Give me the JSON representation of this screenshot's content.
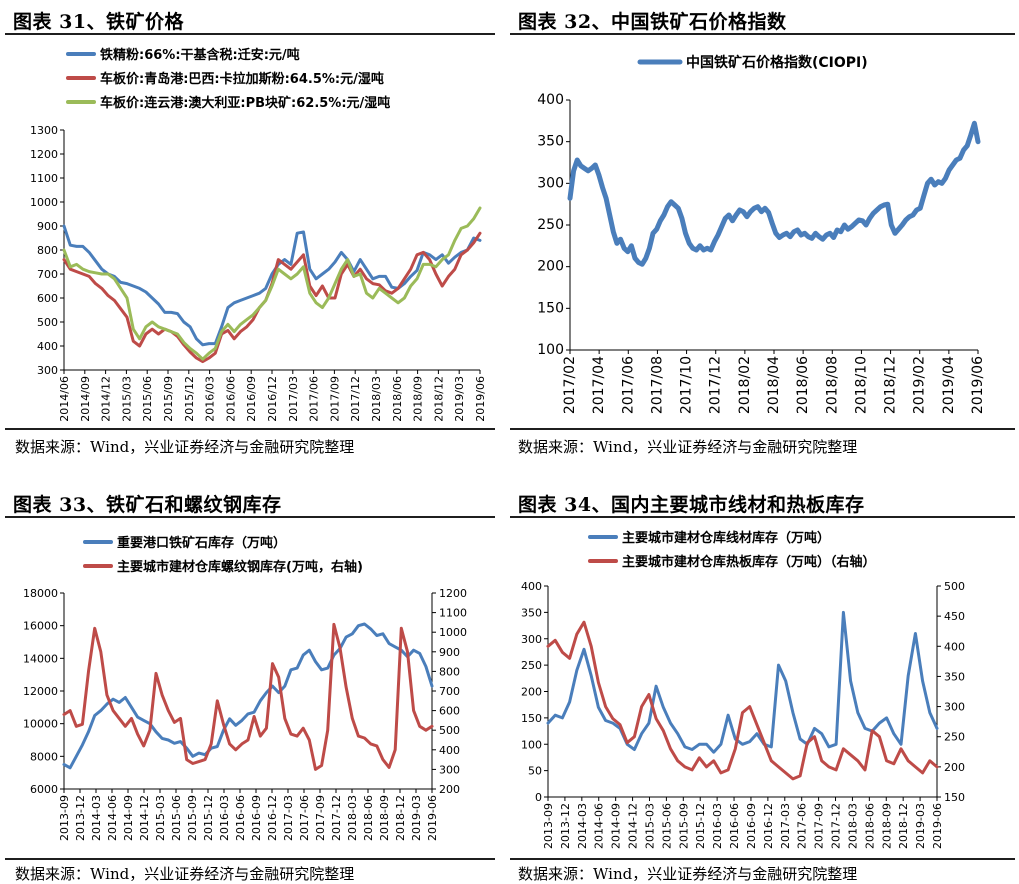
{
  "panels": [
    {
      "title": "图表 31、铁矿价格",
      "source": "数据来源：Wind，兴业证券经济与金融研究院整理"
    },
    {
      "title": "图表 32、中国铁矿石价格指数",
      "source": "数据来源：Wind，兴业证券经济与金融研究院整理"
    },
    {
      "title": "图表 33、铁矿石和螺纹钢库存",
      "source": "数据来源：Wind，兴业证券经济与金融研究院整理"
    },
    {
      "title": "图表 34、国内主要城市线材和热板库存",
      "source": "数据来源：Wind，兴业证券经济与金融研究院整理"
    }
  ],
  "chart_data": [
    {
      "type": "line",
      "title": "图表 31、铁矿价格",
      "x_ticks": [
        "2014/06",
        "2014/09",
        "2014/12",
        "2015/03",
        "2015/06",
        "2015/09",
        "2015/12",
        "2016/03",
        "2016/06",
        "2016/09",
        "2016/12",
        "2017/03",
        "2017/06",
        "2017/09",
        "2017/12",
        "2018/03",
        "2018/06",
        "2018/09",
        "2018/12",
        "2019/03",
        "2019/06"
      ],
      "y_ticks": [
        300,
        400,
        500,
        600,
        700,
        800,
        900,
        1000,
        1100,
        1200,
        1300
      ],
      "ylim": [
        300,
        1300
      ],
      "grid": false,
      "legend": "top-left",
      "series": [
        {
          "name": "铁精粉:66%:干基含税:迁安:元/吨",
          "color": "#4a7ebb",
          "values": [
            900,
            820,
            815,
            815,
            790,
            755,
            720,
            700,
            690,
            665,
            660,
            650,
            640,
            625,
            600,
            575,
            540,
            540,
            535,
            500,
            480,
            430,
            405,
            410,
            410,
            480,
            560,
            580,
            590,
            600,
            610,
            620,
            640,
            700,
            740,
            760,
            740,
            870,
            875,
            720,
            680,
            700,
            720,
            750,
            790,
            760,
            710,
            760,
            720,
            680,
            690,
            690,
            645,
            640,
            660,
            690,
            715,
            790,
            780,
            760,
            780,
            745,
            770,
            790,
            800,
            850,
            840
          ]
        },
        {
          "name": "车板价:青岛港:巴西:卡拉加斯粉:64.5%:元/湿吨",
          "color": "#be4b48",
          "values": [
            760,
            720,
            710,
            700,
            690,
            660,
            640,
            610,
            590,
            555,
            520,
            420,
            400,
            450,
            470,
            450,
            470,
            460,
            440,
            405,
            375,
            350,
            335,
            350,
            370,
            450,
            465,
            430,
            460,
            480,
            510,
            560,
            590,
            660,
            760,
            740,
            720,
            750,
            780,
            650,
            610,
            650,
            600,
            600,
            700,
            740,
            690,
            720,
            680,
            660,
            655,
            630,
            620,
            640,
            680,
            720,
            780,
            790,
            760,
            700,
            650,
            690,
            720,
            780,
            800,
            830,
            870
          ]
        },
        {
          "name": "车板价:连云港:澳大利亚:PB块矿:62.5%:元/湿吨",
          "color": "#9bbb59",
          "values": [
            800,
            730,
            740,
            720,
            710,
            705,
            700,
            700,
            680,
            640,
            600,
            470,
            430,
            480,
            500,
            480,
            470,
            460,
            450,
            415,
            390,
            370,
            345,
            370,
            390,
            460,
            490,
            460,
            490,
            510,
            530,
            560,
            590,
            650,
            720,
            700,
            680,
            700,
            730,
            620,
            580,
            560,
            600,
            660,
            720,
            760,
            690,
            700,
            620,
            600,
            640,
            620,
            600,
            580,
            600,
            650,
            680,
            740,
            740,
            730,
            760,
            780,
            840,
            890,
            900,
            930,
            975
          ]
        }
      ]
    },
    {
      "type": "line",
      "title": "图表 32、中国铁矿石价格指数",
      "x_ticks": [
        "2017/02",
        "2017/04",
        "2017/06",
        "2017/08",
        "2017/10",
        "2017/12",
        "2018/02",
        "2018/04",
        "2018/06",
        "2018/08",
        "2018/10",
        "2018/12",
        "2019/02",
        "2019/04",
        "2019/06"
      ],
      "y_ticks": [
        100,
        150,
        200,
        250,
        300,
        350,
        400
      ],
      "ylim": [
        100,
        400
      ],
      "grid": false,
      "legend": "top",
      "series": [
        {
          "name": "中国铁矿石价格指数(CIOPI)",
          "color": "#4a7ebb",
          "values": [
            282,
            315,
            328,
            321,
            318,
            315,
            318,
            322,
            310,
            295,
            282,
            262,
            242,
            228,
            233,
            222,
            218,
            225,
            210,
            205,
            203,
            210,
            222,
            240,
            245,
            255,
            262,
            272,
            278,
            274,
            270,
            258,
            240,
            228,
            222,
            220,
            225,
            220,
            222,
            220,
            230,
            238,
            248,
            258,
            262,
            255,
            262,
            268,
            266,
            260,
            266,
            270,
            272,
            266,
            270,
            265,
            252,
            240,
            235,
            238,
            240,
            236,
            242,
            244,
            238,
            240,
            236,
            234,
            240,
            236,
            233,
            238,
            240,
            235,
            244,
            242,
            250,
            245,
            248,
            252,
            256,
            255,
            250,
            258,
            264,
            268,
            272,
            274,
            275,
            250,
            240,
            245,
            250,
            256,
            260,
            262,
            268,
            270,
            285,
            300,
            305,
            298,
            302,
            300,
            306,
            316,
            322,
            328,
            330,
            340,
            345,
            358,
            372,
            350
          ]
        }
      ]
    },
    {
      "type": "line",
      "title": "图表 33、铁矿石和螺纹钢库存",
      "x_ticks": [
        "2013-09",
        "2013-12",
        "2014-03",
        "2014-06",
        "2014-09",
        "2014-12",
        "2015-03",
        "2015-06",
        "2015-09",
        "2015-12",
        "2016-03",
        "2016-06",
        "2016-09",
        "2016-12",
        "2017-03",
        "2017-06",
        "2017-09",
        "2017-12",
        "2018-03",
        "2018-06",
        "2018-09",
        "2018-12",
        "2019-03",
        "2019-06"
      ],
      "y_ticks_left": [
        6000,
        8000,
        10000,
        12000,
        14000,
        16000,
        18000
      ],
      "y_ticks_right": [
        200,
        300,
        400,
        500,
        600,
        700,
        800,
        900,
        1000,
        1100,
        1200
      ],
      "ylim_left": [
        6000,
        18000
      ],
      "ylim_right": [
        200,
        1200
      ],
      "grid": false,
      "legend": "top",
      "series": [
        {
          "name": "重要港口铁矿石库存（万吨）",
          "color": "#4a7ebb",
          "axis": "left",
          "values": [
            7500,
            7300,
            8000,
            8700,
            9500,
            10500,
            10800,
            11200,
            11500,
            11300,
            11600,
            11000,
            10400,
            10200,
            10000,
            9500,
            9100,
            9000,
            8800,
            8900,
            8500,
            8000,
            8200,
            8100,
            8500,
            8600,
            9600,
            10300,
            9900,
            10200,
            10600,
            10700,
            11400,
            11900,
            12300,
            11900,
            12300,
            13300,
            13400,
            14200,
            14500,
            13800,
            13300,
            13400,
            14200,
            14600,
            15300,
            15500,
            16000,
            16100,
            15800,
            15400,
            15500,
            14900,
            14700,
            14500,
            14100,
            14500,
            14300,
            13500,
            12300
          ]
        },
        {
          "name": "主要城市建材仓库螺纹钢库存(万吨，右轴)",
          "color": "#be4b48",
          "axis": "right",
          "values": [
            580,
            600,
            520,
            530,
            800,
            1020,
            900,
            680,
            600,
            560,
            520,
            560,
            480,
            420,
            500,
            790,
            680,
            600,
            540,
            560,
            350,
            330,
            340,
            350,
            430,
            650,
            530,
            430,
            400,
            430,
            450,
            570,
            470,
            510,
            840,
            770,
            560,
            480,
            470,
            510,
            450,
            300,
            320,
            500,
            1040,
            920,
            720,
            560,
            470,
            460,
            430,
            420,
            350,
            310,
            400,
            1020,
            900,
            600,
            520,
            500,
            520
          ]
        }
      ]
    },
    {
      "type": "line",
      "title": "图表 34、国内主要城市线材和热板库存",
      "x_ticks": [
        "2013-09",
        "2013-12",
        "2014-03",
        "2014-06",
        "2014-09",
        "2014-12",
        "2015-03",
        "2015-06",
        "2015-09",
        "2015-12",
        "2016-03",
        "2016-06",
        "2016-09",
        "2016-12",
        "2017-03",
        "2017-06",
        "2017-09",
        "2017-12",
        "2018-03",
        "2018-06",
        "2018-09",
        "2018-12",
        "2019-03",
        "2019-06"
      ],
      "y_ticks_left": [
        0,
        50,
        100,
        150,
        200,
        250,
        300,
        350,
        400
      ],
      "y_ticks_right": [
        150,
        200,
        250,
        300,
        350,
        400,
        450,
        500
      ],
      "ylim_left": [
        0,
        400
      ],
      "ylim_right": [
        150,
        500
      ],
      "grid": false,
      "legend": "top",
      "series": [
        {
          "name": "主要城市建材仓库线材库存（万吨）",
          "color": "#4a7ebb",
          "axis": "left",
          "values": [
            140,
            155,
            150,
            180,
            240,
            280,
            230,
            170,
            145,
            140,
            130,
            100,
            90,
            120,
            140,
            210,
            170,
            140,
            120,
            95,
            90,
            100,
            100,
            85,
            100,
            155,
            110,
            100,
            105,
            120,
            100,
            95,
            250,
            220,
            160,
            110,
            100,
            130,
            120,
            95,
            100,
            350,
            220,
            160,
            130,
            125,
            140,
            150,
            120,
            100,
            230,
            310,
            220,
            160,
            130
          ]
        },
        {
          "name": "主要城市建材仓库热板库存（万吨）（右轴）",
          "color": "#be4b48",
          "axis": "right",
          "values": [
            400,
            410,
            390,
            380,
            420,
            440,
            400,
            340,
            300,
            280,
            270,
            240,
            250,
            300,
            320,
            280,
            260,
            230,
            210,
            200,
            195,
            215,
            200,
            210,
            190,
            195,
            230,
            290,
            300,
            270,
            240,
            210,
            200,
            190,
            180,
            185,
            240,
            250,
            210,
            200,
            195,
            230,
            220,
            210,
            195,
            260,
            250,
            210,
            205,
            230,
            210,
            200,
            190,
            210,
            200
          ]
        }
      ]
    }
  ]
}
